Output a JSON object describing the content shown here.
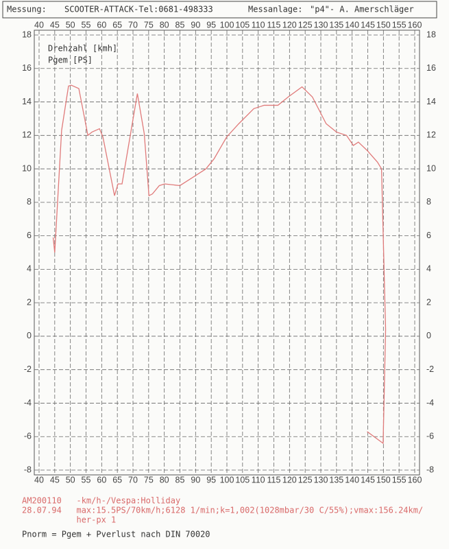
{
  "header": {
    "label_left": "Messung:",
    "value_left": "SCOOTER-ATTACK-Tel:0681-498333",
    "label_right": "Messanlage:",
    "value_right": "\"p4\"- A. Amerschläger"
  },
  "chart_data": {
    "type": "line",
    "legend": [
      "Drehzahl [kmh]",
      "Pgem [PS]"
    ],
    "xlim": [
      40,
      160
    ],
    "ylim": [
      -8,
      18
    ],
    "xticks": [
      40,
      45,
      50,
      55,
      60,
      65,
      70,
      75,
      80,
      85,
      90,
      95,
      100,
      105,
      110,
      115,
      120,
      125,
      130,
      135,
      140,
      145,
      150,
      155,
      160
    ],
    "yticks": [
      -8,
      -6,
      -4,
      -2,
      0,
      2,
      4,
      6,
      8,
      10,
      12,
      14,
      16,
      18
    ],
    "grid": true,
    "series": [
      {
        "name": "Pgem [PS]",
        "color": "#e07a7a",
        "x": [
          44.5,
          45,
          47.2,
          49.4,
          50.3,
          52.7,
          55.6,
          56.9,
          59.3,
          60.4,
          64.1,
          65.2,
          66.5,
          71.4,
          73.6,
          75.1,
          76.2,
          78.4,
          80.1,
          85,
          90,
          93.3,
          95.9,
          99.9,
          103.8,
          108.6,
          111.9,
          116.3,
          119.6,
          124,
          127.3,
          131.7,
          135,
          138.2,
          140.4,
          142,
          144.8,
          148.1,
          149.4,
          150.3,
          150.7,
          149.9,
          144.8
        ],
        "values": [
          5.9,
          5,
          12.3,
          14.95,
          15,
          14.8,
          12,
          12.2,
          12.4,
          11.9,
          8.4,
          9.1,
          9.1,
          14.5,
          12.1,
          8.4,
          8.5,
          9,
          9.1,
          9,
          9.6,
          10,
          10.6,
          11.9,
          12.7,
          13.6,
          13.8,
          13.8,
          14.3,
          14.9,
          14.3,
          12.7,
          12.2,
          12,
          11.4,
          11.6,
          11.1,
          10.4,
          10,
          3.3,
          0.4,
          -6.4,
          -5.7
        ]
      }
    ]
  },
  "footer": {
    "lines": [
      "AM200110   -km/h-/Vespa:Holliday",
      "28.07.94   max:15.5PS/70km/h;6128 1/min;k=1,002(1028mbar/30 C/55%);vmax:156.24km/",
      "           her-px 1"
    ],
    "formula": "Pnorm = Pgem + Pverlust nach DIN 70020"
  }
}
